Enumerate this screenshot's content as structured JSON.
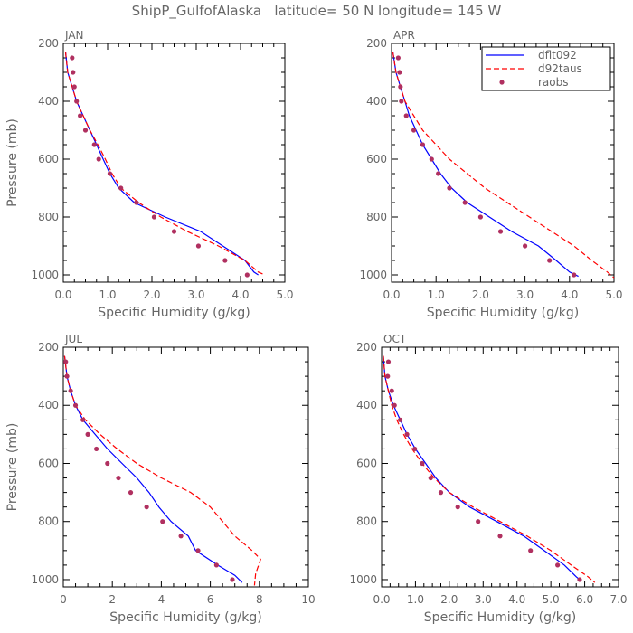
{
  "title": "ShipP_GulfofAlaska   latitude= 50 N longitude= 145 W",
  "legend": {
    "placement": "top-right of APR panel",
    "entries": [
      {
        "name": "dflt092",
        "color": "#0000ff",
        "style": "solid"
      },
      {
        "name": "d92taus",
        "color": "#ff0000",
        "style": "dashed"
      },
      {
        "name": "raobs",
        "color": "#b03060",
        "style": "dots"
      }
    ]
  },
  "chart_data": [
    {
      "type": "line",
      "panel": "JAN",
      "xlabel": "Specific Humidity (g/kg)",
      "ylabel": "Pressure (mb)",
      "xlim": [
        0,
        5
      ],
      "ylim": [
        200,
        1025
      ],
      "y_inverted": true,
      "xticks": [
        "0.0",
        "1.0",
        "2.0",
        "3.0",
        "4.0",
        "5.0"
      ],
      "xtick_values": [
        0,
        1,
        2,
        3,
        4,
        5
      ],
      "yticks": [
        "200",
        "400",
        "600",
        "800",
        "1000"
      ],
      "ytick_values": [
        200,
        400,
        600,
        800,
        1000
      ],
      "series": [
        {
          "name": "dflt092",
          "points": [
            [
              0.05,
              230
            ],
            [
              0.1,
              300
            ],
            [
              0.2,
              350
            ],
            [
              0.3,
              400
            ],
            [
              0.45,
              450
            ],
            [
              0.6,
              500
            ],
            [
              0.75,
              550
            ],
            [
              0.9,
              600
            ],
            [
              1.05,
              650
            ],
            [
              1.25,
              700
            ],
            [
              1.6,
              750
            ],
            [
              2.3,
              800
            ],
            [
              3.1,
              850
            ],
            [
              3.6,
              900
            ],
            [
              4.1,
              950
            ],
            [
              4.3,
              990
            ],
            [
              4.4,
              1000
            ]
          ]
        },
        {
          "name": "d92taus",
          "points": [
            [
              0.05,
              230
            ],
            [
              0.1,
              300
            ],
            [
              0.2,
              350
            ],
            [
              0.3,
              400
            ],
            [
              0.45,
              450
            ],
            [
              0.6,
              500
            ],
            [
              0.78,
              550
            ],
            [
              0.95,
              600
            ],
            [
              1.1,
              650
            ],
            [
              1.3,
              700
            ],
            [
              1.7,
              750
            ],
            [
              2.2,
              800
            ],
            [
              2.8,
              850
            ],
            [
              3.5,
              900
            ],
            [
              4.1,
              950
            ],
            [
              4.4,
              990
            ],
            [
              4.55,
              1000
            ]
          ]
        }
      ],
      "raobs": [
        [
          0.2,
          250
        ],
        [
          0.22,
          300
        ],
        [
          0.25,
          350
        ],
        [
          0.3,
          400
        ],
        [
          0.38,
          450
        ],
        [
          0.5,
          500
        ],
        [
          0.7,
          550
        ],
        [
          0.8,
          600
        ],
        [
          1.05,
          650
        ],
        [
          1.3,
          700
        ],
        [
          1.65,
          750
        ],
        [
          2.05,
          800
        ],
        [
          2.5,
          850
        ],
        [
          3.05,
          900
        ],
        [
          3.65,
          950
        ],
        [
          4.15,
          1000
        ]
      ]
    },
    {
      "type": "line",
      "panel": "APR",
      "xlabel": "Specific Humidity (g/kg)",
      "ylabel": "",
      "xlim": [
        0,
        5
      ],
      "ylim": [
        200,
        1025
      ],
      "y_inverted": true,
      "xticks": [
        "0.0",
        "1.0",
        "2.0",
        "3.0",
        "4.0",
        "5.0"
      ],
      "xtick_values": [
        0,
        1,
        2,
        3,
        4,
        5
      ],
      "yticks": [
        "200",
        "400",
        "600",
        "800",
        "1000"
      ],
      "ytick_values": [
        200,
        400,
        600,
        800,
        1000
      ],
      "series": [
        {
          "name": "dflt092",
          "points": [
            [
              0.03,
              230
            ],
            [
              0.1,
              300
            ],
            [
              0.2,
              350
            ],
            [
              0.3,
              400
            ],
            [
              0.4,
              450
            ],
            [
              0.55,
              500
            ],
            [
              0.7,
              550
            ],
            [
              0.9,
              600
            ],
            [
              1.1,
              650
            ],
            [
              1.35,
              700
            ],
            [
              1.7,
              750
            ],
            [
              2.2,
              800
            ],
            [
              2.7,
              850
            ],
            [
              3.3,
              900
            ],
            [
              3.7,
              950
            ],
            [
              4.0,
              990
            ],
            [
              4.2,
              1005
            ]
          ]
        },
        {
          "name": "d92taus",
          "points": [
            [
              0.03,
              230
            ],
            [
              0.1,
              300
            ],
            [
              0.2,
              350
            ],
            [
              0.3,
              400
            ],
            [
              0.5,
              450
            ],
            [
              0.7,
              500
            ],
            [
              1.0,
              550
            ],
            [
              1.3,
              600
            ],
            [
              1.7,
              650
            ],
            [
              2.1,
              700
            ],
            [
              2.6,
              750
            ],
            [
              3.1,
              800
            ],
            [
              3.6,
              850
            ],
            [
              4.1,
              900
            ],
            [
              4.5,
              950
            ],
            [
              4.85,
              990
            ],
            [
              5.0,
              1010
            ]
          ]
        }
      ],
      "raobs": [
        [
          0.15,
          250
        ],
        [
          0.18,
          300
        ],
        [
          0.2,
          350
        ],
        [
          0.22,
          400
        ],
        [
          0.33,
          450
        ],
        [
          0.5,
          500
        ],
        [
          0.7,
          550
        ],
        [
          0.9,
          600
        ],
        [
          1.05,
          650
        ],
        [
          1.3,
          700
        ],
        [
          1.65,
          750
        ],
        [
          2.0,
          800
        ],
        [
          2.45,
          850
        ],
        [
          3.0,
          900
        ],
        [
          3.55,
          950
        ],
        [
          4.1,
          1000
        ]
      ]
    },
    {
      "type": "line",
      "panel": "JUL",
      "xlabel": "Specific Humidity (g/kg)",
      "ylabel": "Pressure (mb)",
      "xlim": [
        0,
        10
      ],
      "ylim": [
        200,
        1025
      ],
      "y_inverted": true,
      "xticks": [
        "0",
        "2",
        "4",
        "6",
        "8",
        "10"
      ],
      "xtick_values": [
        0,
        2,
        4,
        6,
        8,
        10
      ],
      "yticks": [
        "200",
        "400",
        "600",
        "800",
        "1000"
      ],
      "ytick_values": [
        200,
        400,
        600,
        800,
        1000
      ],
      "series": [
        {
          "name": "dflt092",
          "points": [
            [
              0.05,
              230
            ],
            [
              0.15,
              300
            ],
            [
              0.3,
              350
            ],
            [
              0.5,
              400
            ],
            [
              0.8,
              450
            ],
            [
              1.3,
              500
            ],
            [
              1.8,
              550
            ],
            [
              2.4,
              600
            ],
            [
              3.0,
              650
            ],
            [
              3.5,
              700
            ],
            [
              3.9,
              750
            ],
            [
              4.4,
              800
            ],
            [
              5.1,
              850
            ],
            [
              5.4,
              900
            ],
            [
              6.3,
              950
            ],
            [
              7.0,
              985
            ],
            [
              7.3,
              1010
            ]
          ]
        },
        {
          "name": "d92taus",
          "points": [
            [
              0.05,
              230
            ],
            [
              0.15,
              300
            ],
            [
              0.3,
              350
            ],
            [
              0.5,
              400
            ],
            [
              0.9,
              450
            ],
            [
              1.5,
              500
            ],
            [
              2.2,
              550
            ],
            [
              3.0,
              600
            ],
            [
              4.0,
              650
            ],
            [
              5.2,
              700
            ],
            [
              6.0,
              750
            ],
            [
              6.5,
              800
            ],
            [
              7.0,
              850
            ],
            [
              7.7,
              900
            ],
            [
              8.05,
              930
            ],
            [
              7.85,
              980
            ],
            [
              7.8,
              1020
            ]
          ]
        }
      ],
      "raobs": [
        [
          0.1,
          250
        ],
        [
          0.15,
          300
        ],
        [
          0.3,
          350
        ],
        [
          0.5,
          400
        ],
        [
          0.8,
          450
        ],
        [
          1.0,
          500
        ],
        [
          1.35,
          550
        ],
        [
          1.8,
          600
        ],
        [
          2.25,
          650
        ],
        [
          2.75,
          700
        ],
        [
          3.4,
          750
        ],
        [
          4.05,
          800
        ],
        [
          4.8,
          850
        ],
        [
          5.5,
          900
        ],
        [
          6.25,
          950
        ],
        [
          6.9,
          1000
        ]
      ]
    },
    {
      "type": "line",
      "panel": "OCT",
      "xlabel": "Specific Humidity (g/kg)",
      "ylabel": "",
      "xlim": [
        0,
        7
      ],
      "ylim": [
        200,
        1025
      ],
      "y_inverted": true,
      "xticks": [
        "0.0",
        "1.0",
        "2.0",
        "3.0",
        "4.0",
        "5.0",
        "6.0",
        "7.0"
      ],
      "xtick_values": [
        0,
        1,
        2,
        3,
        4,
        5,
        6,
        7
      ],
      "yticks": [
        "200",
        "400",
        "600",
        "800",
        "1000"
      ],
      "ytick_values": [
        200,
        400,
        600,
        800,
        1000
      ],
      "series": [
        {
          "name": "dflt092",
          "points": [
            [
              0.05,
              230
            ],
            [
              0.1,
              300
            ],
            [
              0.2,
              350
            ],
            [
              0.35,
              400
            ],
            [
              0.55,
              450
            ],
            [
              0.75,
              500
            ],
            [
              1.0,
              550
            ],
            [
              1.3,
              600
            ],
            [
              1.6,
              650
            ],
            [
              2.0,
              700
            ],
            [
              2.6,
              750
            ],
            [
              3.4,
              800
            ],
            [
              4.2,
              850
            ],
            [
              4.8,
              900
            ],
            [
              5.4,
              950
            ],
            [
              5.75,
              990
            ],
            [
              5.9,
              1005
            ]
          ]
        },
        {
          "name": "d92taus",
          "points": [
            [
              0.05,
              230
            ],
            [
              0.1,
              300
            ],
            [
              0.2,
              350
            ],
            [
              0.3,
              400
            ],
            [
              0.45,
              450
            ],
            [
              0.65,
              500
            ],
            [
              0.9,
              550
            ],
            [
              1.2,
              600
            ],
            [
              1.55,
              650
            ],
            [
              2.0,
              700
            ],
            [
              2.7,
              750
            ],
            [
              3.5,
              800
            ],
            [
              4.3,
              850
            ],
            [
              5.0,
              900
            ],
            [
              5.6,
              950
            ],
            [
              6.1,
              990
            ],
            [
              6.3,
              1010
            ]
          ]
        }
      ],
      "raobs": [
        [
          0.2,
          250
        ],
        [
          0.18,
          300
        ],
        [
          0.3,
          350
        ],
        [
          0.38,
          400
        ],
        [
          0.55,
          450
        ],
        [
          0.75,
          500
        ],
        [
          0.98,
          550
        ],
        [
          1.2,
          600
        ],
        [
          1.45,
          650
        ],
        [
          1.75,
          700
        ],
        [
          2.25,
          750
        ],
        [
          2.85,
          800
        ],
        [
          3.5,
          850
        ],
        [
          4.4,
          900
        ],
        [
          5.2,
          950
        ],
        [
          5.85,
          1000
        ]
      ]
    }
  ]
}
